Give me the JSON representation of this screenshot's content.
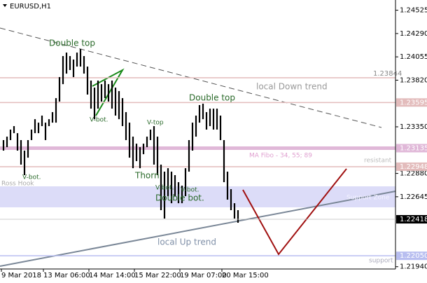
{
  "chart_data": {
    "type": "range-bar",
    "title": "EURUSD,H1",
    "categories": [
      "9 Mar 2018",
      null,
      null,
      null,
      null,
      null,
      null,
      null,
      null,
      null,
      null,
      null,
      "13 Mar 06:00",
      null,
      null,
      null,
      null,
      null,
      null,
      null,
      null,
      null,
      null,
      null,
      null,
      "14 Mar 14:00",
      null,
      null,
      null,
      null,
      null,
      null,
      null,
      null,
      null,
      null,
      null,
      null,
      "15 Mar 22:00",
      null,
      null,
      null,
      null,
      null,
      null,
      null,
      null,
      null,
      null,
      null,
      null,
      "19 Mar 07:00",
      null,
      null,
      null,
      null,
      null,
      null,
      null,
      null,
      null,
      null,
      null,
      "20 Mar 15:00",
      null,
      null,
      null,
      null
    ],
    "high": [
      1.23216,
      1.23251,
      1.23322,
      1.23357,
      1.23286,
      1.23216,
      1.2311,
      1.23216,
      1.23322,
      1.23427,
      1.23392,
      1.23463,
      1.23392,
      1.23427,
      1.23498,
      1.23639,
      1.23851,
      1.24063,
      1.24098,
      1.24063,
      1.24028,
      1.24098,
      1.24133,
      1.24063,
      1.23957,
      1.23816,
      1.23745,
      1.23816,
      1.2378,
      1.23816,
      1.2378,
      1.23816,
      1.23745,
      1.2371,
      1.23639,
      1.23498,
      1.23392,
      1.23251,
      1.2318,
      1.23145,
      1.2318,
      1.23251,
      1.23322,
      1.23357,
      1.23251,
      1.22969,
      1.22898,
      1.22933,
      1.22898,
      1.22863,
      1.22792,
      1.22757,
      1.22933,
      1.23216,
      1.23392,
      1.23463,
      1.23569,
      1.23583,
      1.23498,
      1.23533,
      1.23533,
      1.23533,
      1.23463,
      1.23216,
      1.22898,
      1.22722,
      1.2258,
      1.2251
    ],
    "low": [
      1.2311,
      1.23145,
      1.23216,
      1.23286,
      1.2311,
      1.22969,
      1.22863,
      1.23039,
      1.23216,
      1.23286,
      1.23286,
      1.23357,
      1.23216,
      1.23357,
      1.23392,
      1.23392,
      1.23604,
      1.2378,
      1.23886,
      1.23922,
      1.23851,
      1.23957,
      1.23957,
      1.23886,
      1.23675,
      1.23533,
      1.23427,
      1.23533,
      1.23604,
      1.23639,
      1.23604,
      1.23533,
      1.23463,
      1.23427,
      1.23357,
      1.23216,
      1.23039,
      1.22933,
      1.23004,
      1.22933,
      1.23074,
      1.23145,
      1.23216,
      1.22969,
      1.22863,
      1.2251,
      1.22425,
      1.22651,
      1.2258,
      1.22651,
      1.2258,
      1.2258,
      1.22651,
      1.22898,
      1.2311,
      1.23251,
      1.23392,
      1.23427,
      1.23322,
      1.23357,
      1.23322,
      1.23322,
      1.23216,
      1.22792,
      1.22616,
      1.2251,
      1.22425,
      1.22383
    ],
    "color": "#000000",
    "ylim": [
      1.21917,
      1.24628
    ],
    "yticks": [
      1.24525,
      {
        "value": 1.2429,
        "label": "1.24290"
      },
      1.24055,
      {
        "value": 1.2382,
        "label": "1.23820"
      },
      {
        "value": 1.2335,
        "label": "1.23350"
      },
      {
        "value": 1.2288,
        "label": "1.22880"
      },
      1.22645,
      {
        "value": 1.2194,
        "label": "1.21940"
      }
    ],
    "levels": [
      1.23844,
      1.23595,
      1.23135,
      1.22948,
      {
        "value": 1.2205,
        "label": "1.22050"
      }
    ],
    "level_colors": [
      "#e3bcbc",
      "#e3bcbc",
      "#e0b8d8",
      "#e3bcbc",
      "#b8bef0"
    ],
    "current_price": 1.22418,
    "annotations": [
      "Double top",
      "Double top",
      "V-bot.",
      "V-bot.",
      "V-top",
      "Thorn",
      "V-bot.",
      "V-bot.",
      "Double bot.",
      "local Down trend",
      "local Up trend",
      "MA Fibo - 34, 55; 89",
      "resistant",
      "Support Zone",
      "support",
      "Ross Hook"
    ]
  }
}
